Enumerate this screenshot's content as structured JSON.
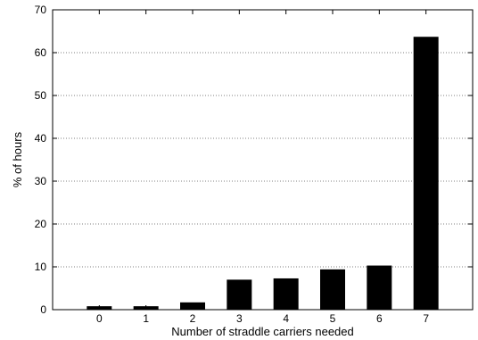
{
  "chart_data": {
    "type": "bar",
    "title": "",
    "xlabel": "Number of straddle carriers needed",
    "ylabel": "% of hours",
    "categories": [
      "0",
      "1",
      "2",
      "3",
      "4",
      "5",
      "6",
      "7"
    ],
    "values": [
      0.8,
      0.8,
      1.7,
      7.0,
      7.3,
      9.4,
      10.3,
      63.7
    ],
    "ylim": [
      0,
      70
    ],
    "yticks": [
      "0",
      "10",
      "20",
      "30",
      "40",
      "50",
      "60",
      "70"
    ],
    "grid": "horizontal dotted",
    "bar_color": "#000000"
  }
}
